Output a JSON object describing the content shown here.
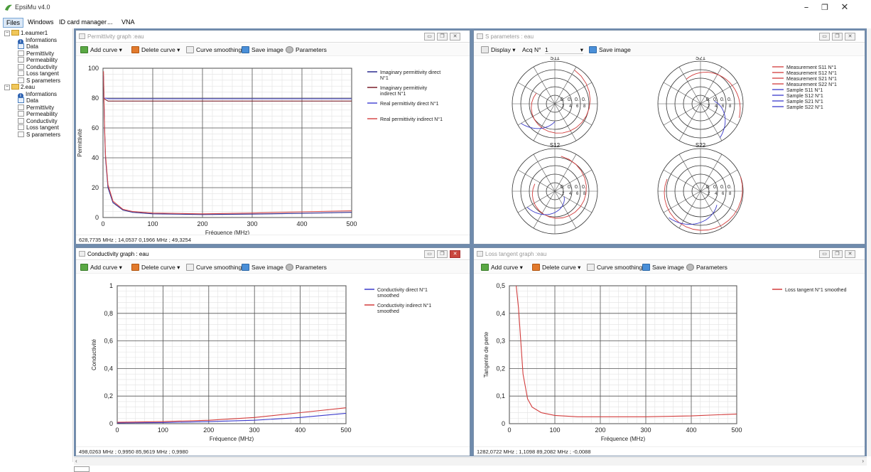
{
  "app": {
    "title": "EpsiMu v4.0"
  },
  "menu": [
    "Files",
    "Windows",
    "ID card manager",
    "...",
    "VNA"
  ],
  "tree": [
    {
      "label": "1.eaumer1",
      "children": [
        "Informations",
        "Data",
        "Permittivity",
        "Permeability",
        "Conductivity",
        "Loss tangent",
        "S parameters"
      ]
    },
    {
      "label": "2.eau",
      "children": [
        "Informations",
        "Data",
        "Permittivity",
        "Permeability",
        "Conductivity",
        "Loss tangent",
        "S parameters"
      ]
    }
  ],
  "toolbar": {
    "add_curve": "Add curve",
    "delete_curve": "Delete curve",
    "curve_smoothing": "Curve smoothing",
    "save_image": "Save image",
    "parameters": "Parameters",
    "display": "Display",
    "acq_label": "Acq N°",
    "acq_value": "1"
  },
  "windows": {
    "permittivity": {
      "title": "Permittivity graph :eau",
      "status": "628,7735 MHz ; 14,0537  0,1966 MHz ; 49,3254"
    },
    "sparams": {
      "title": "S parameters : eau"
    },
    "conductivity": {
      "title": "Conductivity graph : eau",
      "status": "498,0263 MHz ; 0,9950  85,9619 MHz ; 0,9980"
    },
    "losstangent": {
      "title": "Loss tangent graph :eau",
      "status": "1282,0722 MHz ; 1,1098  89,2082 MHz ; -0,0088"
    }
  },
  "colors": {
    "imag_direct": "#2b2b8f",
    "imag_indirect": "#7a1f2a",
    "real_direct": "#4b4bd6",
    "real_indirect": "#d64b4b",
    "red": "#d23c3c",
    "blue": "#3a3acb",
    "darkred": "#8b1a1a"
  },
  "chart_data": [
    {
      "type": "line",
      "title": "",
      "xlabel": "Fréquence (MHz)",
      "ylabel": "Permittivité",
      "xlim": [
        0,
        500
      ],
      "ylim": [
        0,
        100
      ],
      "xticks": [
        0,
        100,
        200,
        300,
        400,
        500
      ],
      "yticks": [
        0,
        20,
        40,
        60,
        80,
        100
      ],
      "legend_position": "right",
      "series": [
        {
          "name": "Imaginary permittivity direct N°1",
          "color": "#2b2b8f",
          "x": [
            1,
            3,
            5,
            10,
            20,
            40,
            60,
            100,
            200,
            300,
            400,
            500
          ],
          "y": [
            95,
            60,
            40,
            20,
            10,
            5,
            3.5,
            2.5,
            2,
            2.3,
            2.8,
            3.5
          ]
        },
        {
          "name": "Imaginary permittivity indirect N°1",
          "color": "#7a1f2a",
          "x": [
            1,
            5,
            10,
            50,
            100,
            200,
            300,
            400,
            500
          ],
          "y": [
            80,
            79,
            78,
            78,
            78,
            78,
            78,
            78,
            78
          ]
        },
        {
          "name": "Real permittivity direct N°1",
          "color": "#4b4bd6",
          "x": [
            1,
            5,
            10,
            50,
            100,
            200,
            300,
            400,
            500
          ],
          "y": [
            80,
            80,
            79.5,
            79.5,
            79.5,
            79.5,
            79.5,
            79.5,
            79.5
          ]
        },
        {
          "name": "Real permittivity indirect N°1",
          "color": "#d64b4b",
          "x": [
            1,
            3,
            5,
            10,
            20,
            40,
            60,
            100,
            200,
            300,
            400,
            500
          ],
          "y": [
            98,
            62,
            42,
            22,
            11,
            5.5,
            4,
            3,
            2.5,
            3,
            3.8,
            4.5
          ]
        }
      ]
    },
    {
      "type": "line",
      "title": "",
      "subplots": [
        {
          "title": "S11",
          "series": [
            "Measurement S11 N°1",
            "Sample S11 N°1"
          ]
        },
        {
          "title": "S21",
          "series": [
            "Measurement S21 N°1",
            "Sample S21 N°1"
          ]
        },
        {
          "title": "S12",
          "series": [
            "Measurement S12 N°1",
            "Sample S12 N°1"
          ]
        },
        {
          "title": "S22",
          "series": [
            "Measurement S22 N°1",
            "Sample S22 N°1"
          ]
        }
      ],
      "legend": [
        {
          "name": "Measurement  S11 N°1",
          "color": "#d23c3c"
        },
        {
          "name": "Measurement  S12 N°1",
          "color": "#d23c3c"
        },
        {
          "name": "Measurement  S21 N°1",
          "color": "#d23c3c"
        },
        {
          "name": "Measurement  S22 N°1",
          "color": "#d23c3c"
        },
        {
          "name": "Sample S11 N°1",
          "color": "#3a3acb"
        },
        {
          "name": "Sample S12 N°1",
          "color": "#3a3acb"
        },
        {
          "name": "Sample S21 N°1",
          "color": "#3a3acb"
        },
        {
          "name": "Sample S22 N°1",
          "color": "#3a3acb"
        }
      ],
      "ring_labels": [
        "0.",
        "0.",
        "0.",
        "0."
      ],
      "ring_labels_small": [
        "2",
        "4",
        "6",
        "8"
      ],
      "legend_position": "right"
    },
    {
      "type": "line",
      "title": "",
      "xlabel": "Fréquence (MHz)",
      "ylabel": "Conductivité",
      "xlim": [
        0,
        500
      ],
      "ylim": [
        0,
        1
      ],
      "xticks": [
        0,
        100,
        200,
        300,
        400,
        500
      ],
      "yticks": [
        "0",
        "0,2",
        "0,4",
        "0,6",
        "0,8",
        "1"
      ],
      "legend_position": "top-right",
      "series": [
        {
          "name": "Conductivity direct N°1 smoothed",
          "color": "#3a3acb",
          "x": [
            0,
            100,
            200,
            300,
            400,
            500
          ],
          "y": [
            0.005,
            0.008,
            0.015,
            0.025,
            0.045,
            0.075
          ]
        },
        {
          "name": "Conductivity indirect N°1 smoothed",
          "color": "#d23c3c",
          "x": [
            0,
            100,
            200,
            300,
            400,
            500
          ],
          "y": [
            0.01,
            0.015,
            0.025,
            0.045,
            0.08,
            0.115
          ]
        }
      ]
    },
    {
      "type": "line",
      "title": "",
      "xlabel": "Fréquence (MHz)",
      "ylabel": "Tangente de perte",
      "xlim": [
        0,
        500
      ],
      "ylim": [
        0,
        0.5
      ],
      "xticks": [
        0,
        100,
        200,
        300,
        400,
        500
      ],
      "yticks": [
        "0",
        "0,1",
        "0,2",
        "0,3",
        "0,4",
        "0,5"
      ],
      "legend_position": "top-right",
      "series": [
        {
          "name": "Loss tangent N°1 smoothed",
          "color": "#d23c3c",
          "x": [
            15,
            20,
            25,
            30,
            40,
            50,
            70,
            100,
            150,
            200,
            300,
            400,
            500
          ],
          "y": [
            0.5,
            0.42,
            0.3,
            0.18,
            0.09,
            0.06,
            0.04,
            0.03,
            0.025,
            0.025,
            0.025,
            0.028,
            0.035
          ]
        }
      ]
    }
  ]
}
